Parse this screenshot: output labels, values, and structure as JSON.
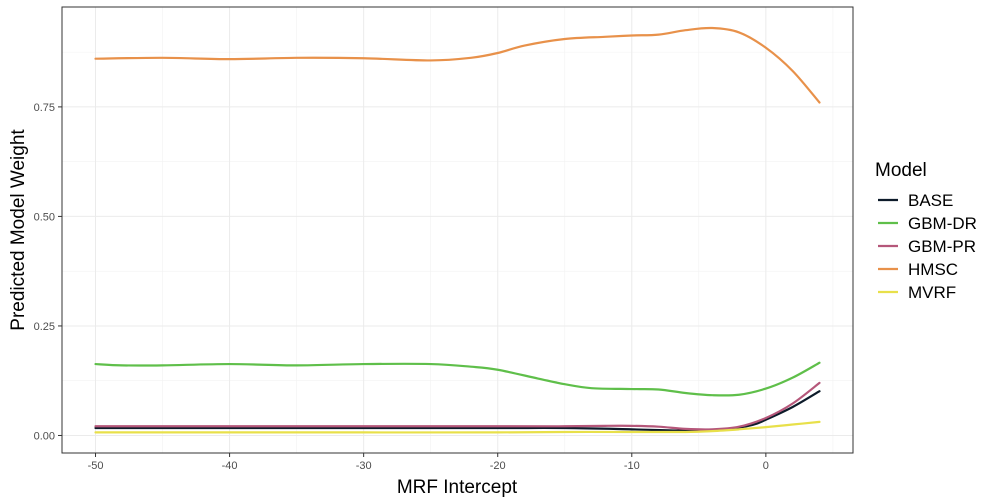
{
  "chart_data": {
    "type": "line",
    "title": "",
    "xlabel": "MRF Intercept",
    "ylabel": "Predicted Model Weight",
    "xlim": [
      -52.5,
      6.5
    ],
    "ylim": [
      -0.04,
      0.978
    ],
    "x_ticks": [
      -50,
      -40,
      -30,
      -20,
      -10,
      0
    ],
    "x_tick_labels": [
      "-50",
      "-40",
      "-30",
      "-20",
      "-10",
      "0"
    ],
    "y_ticks": [
      0,
      0.25,
      0.5,
      0.75
    ],
    "y_tick_labels": [
      "0.00",
      "0.25",
      "0.50",
      "0.75"
    ],
    "grid": true,
    "legend": {
      "title": "Model",
      "placement": "right"
    },
    "series": [
      {
        "name": "BASE",
        "color": "#0d1b2a",
        "x": [
          -50,
          -40,
          -30,
          -20,
          -15,
          -10,
          -6,
          -3,
          -1,
          0,
          2,
          4
        ],
        "y": [
          0.017,
          0.017,
          0.017,
          0.017,
          0.017,
          0.014,
          0.011,
          0.014,
          0.024,
          0.036,
          0.065,
          0.101
        ]
      },
      {
        "name": "GBM-DR",
        "color": "#5fbf4a",
        "x": [
          -50,
          -48,
          -45,
          -40,
          -35,
          -30,
          -25,
          -22,
          -20,
          -17,
          -15,
          -13,
          -10,
          -8,
          -6,
          -4,
          -2,
          0,
          2,
          4
        ],
        "y": [
          0.163,
          0.16,
          0.16,
          0.163,
          0.16,
          0.163,
          0.163,
          0.157,
          0.15,
          0.13,
          0.117,
          0.108,
          0.106,
          0.105,
          0.097,
          0.092,
          0.093,
          0.107,
          0.132,
          0.166
        ]
      },
      {
        "name": "GBM-PR",
        "color": "#b5577a",
        "x": [
          -50,
          -40,
          -30,
          -20,
          -15,
          -12,
          -10,
          -8,
          -6,
          -4,
          -2,
          0,
          2,
          4
        ],
        "y": [
          0.021,
          0.021,
          0.021,
          0.021,
          0.021,
          0.022,
          0.022,
          0.02,
          0.015,
          0.014,
          0.02,
          0.04,
          0.073,
          0.12
        ]
      },
      {
        "name": "HMSC",
        "color": "#e8914a",
        "x": [
          -50,
          -45,
          -40,
          -35,
          -30,
          -25,
          -22,
          -20,
          -18,
          -15,
          -12,
          -10,
          -8,
          -6,
          -4,
          -2,
          0,
          2,
          4
        ],
        "y": [
          0.86,
          0.862,
          0.859,
          0.862,
          0.861,
          0.856,
          0.862,
          0.873,
          0.89,
          0.905,
          0.91,
          0.913,
          0.915,
          0.925,
          0.93,
          0.92,
          0.885,
          0.832,
          0.76
        ]
      },
      {
        "name": "MVRF",
        "color": "#e8e04a",
        "x": [
          -50,
          -40,
          -30,
          -20,
          -15,
          -10,
          -6,
          -4,
          -2,
          0,
          2,
          4
        ],
        "y": [
          0.007,
          0.007,
          0.007,
          0.007,
          0.008,
          0.008,
          0.008,
          0.01,
          0.014,
          0.019,
          0.025,
          0.031
        ]
      }
    ]
  }
}
